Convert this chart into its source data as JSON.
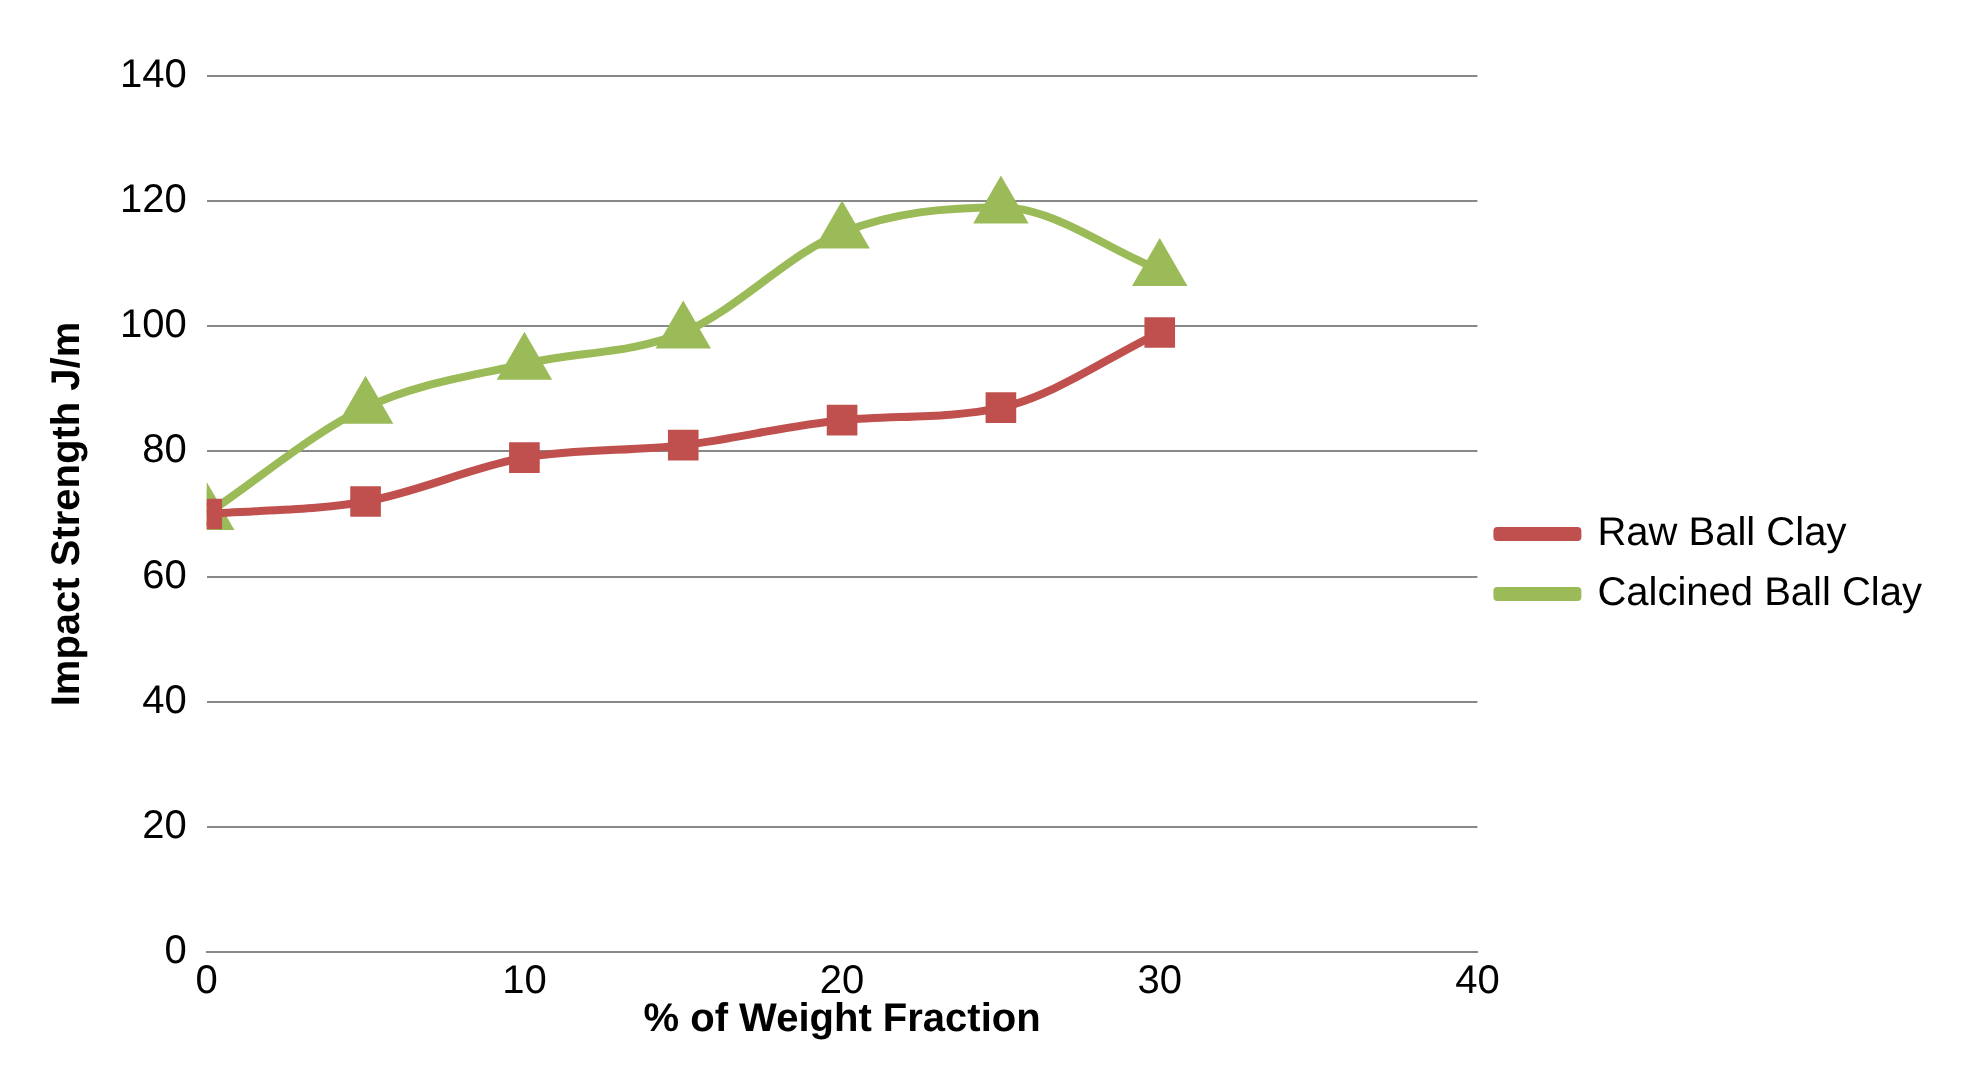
{
  "chart_data": {
    "type": "line",
    "xlabel": "% of Weight Fraction",
    "ylabel": "Impact Strength J/m",
    "x": [
      0,
      5,
      10,
      15,
      20,
      25,
      30
    ],
    "series": [
      {
        "name": "Raw Ball Clay",
        "color": "#c0504d",
        "marker": "square",
        "values": [
          70,
          72,
          79,
          81,
          85,
          87,
          99
        ]
      },
      {
        "name": "Calcined Ball Clay",
        "color": "#9bbb59",
        "marker": "triangle",
        "values": [
          70,
          87,
          94,
          99,
          115,
          119,
          109
        ]
      }
    ],
    "xlim": [
      0,
      40
    ],
    "xticks": [
      0,
      10,
      20,
      30,
      40
    ],
    "ylim": [
      0,
      140
    ],
    "yticks": [
      0,
      20,
      40,
      60,
      80,
      100,
      120,
      140
    ],
    "grid": "y",
    "legend": "right"
  }
}
